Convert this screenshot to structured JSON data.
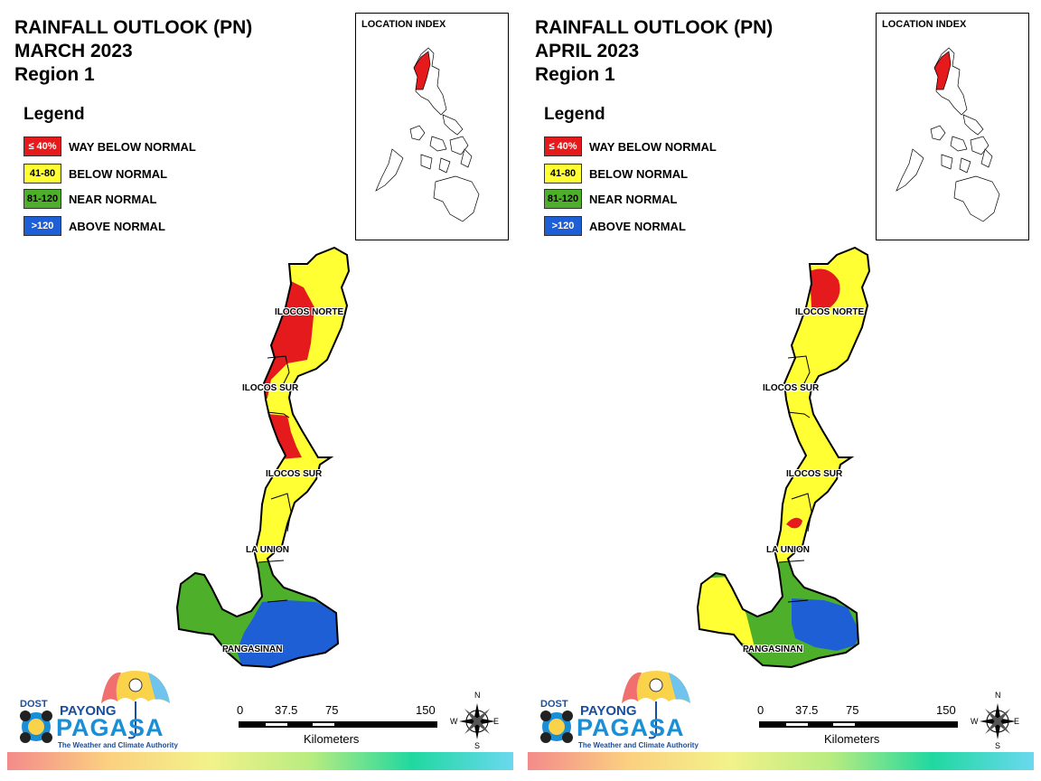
{
  "panels": [
    {
      "title_line1": "RAINFALL OUTLOOK (PN)",
      "title_line2": "MARCH 2023",
      "title_line3": "Region 1",
      "legend_title": "Legend",
      "legend": [
        {
          "code": "≤ 40%",
          "label": "WAY BELOW NORMAL",
          "color": "#e41a1c"
        },
        {
          "code": "41-80",
          "label": "BELOW NORMAL",
          "color": "#ffff33"
        },
        {
          "code": "81-120",
          "label": "NEAR NORMAL",
          "color": "#4daf2a"
        },
        {
          "code": ">120",
          "label": "ABOVE NORMAL",
          "color": "#1f5fd6"
        }
      ],
      "location_index_title": "LOCATION INDEX",
      "provinces": [
        "ILOCOS NORTE",
        "ILOCOS SUR",
        "ILOCOS SUR",
        "LA UNION",
        "PANGASINAN"
      ],
      "logo": {
        "dost": "DOST",
        "payong": "PAYONG",
        "pagasa": "PAGASA",
        "tagline": "The Weather and Climate Authority"
      },
      "scale": {
        "ticks": [
          "0",
          "37.5",
          "75",
          "150"
        ],
        "unit": "Kilometers"
      },
      "compass": {
        "n": "N",
        "s": "S",
        "e": "E",
        "w": "W"
      }
    },
    {
      "title_line1": "RAINFALL OUTLOOK (PN)",
      "title_line2": "APRIL 2023",
      "title_line3": "Region 1",
      "legend_title": "Legend",
      "legend": [
        {
          "code": "≤ 40%",
          "label": "WAY BELOW NORMAL",
          "color": "#e41a1c"
        },
        {
          "code": "41-80",
          "label": "BELOW NORMAL",
          "color": "#ffff33"
        },
        {
          "code": "81-120",
          "label": "NEAR NORMAL",
          "color": "#4daf2a"
        },
        {
          "code": ">120",
          "label": "ABOVE NORMAL",
          "color": "#1f5fd6"
        }
      ],
      "location_index_title": "LOCATION INDEX",
      "provinces": [
        "ILOCOS NORTE",
        "ILOCOS SUR",
        "ILOCOS SUR",
        "LA UNION",
        "PANGASINAN"
      ],
      "logo": {
        "dost": "DOST",
        "payong": "PAYONG",
        "pagasa": "PAGASA",
        "tagline": "The Weather and Climate Authority"
      },
      "scale": {
        "ticks": [
          "0",
          "37.5",
          "75",
          "150"
        ],
        "unit": "Kilometers"
      },
      "compass": {
        "n": "N",
        "s": "S",
        "e": "E",
        "w": "W"
      }
    }
  ]
}
